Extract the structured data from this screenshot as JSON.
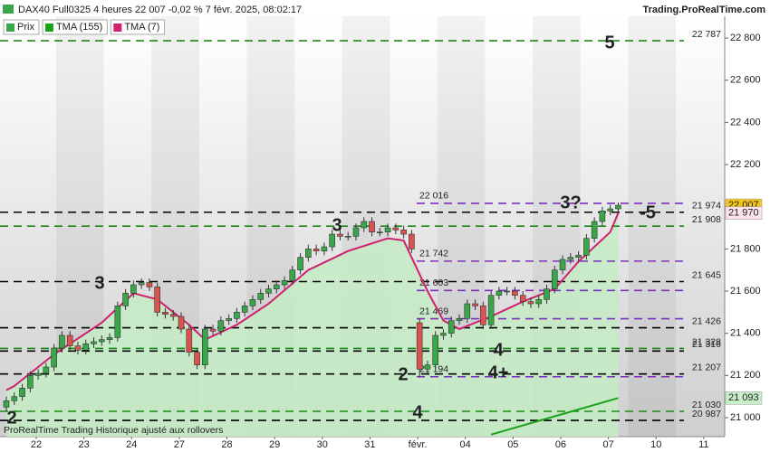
{
  "chart_data": {
    "type": "candlestick",
    "title": "DAX40 Full0325 4 heures 22 007 -0,02 % 7 févr. 2025, 08:02:17",
    "source": "Trading.ProRealTime.com",
    "footer": "ProRealTime Trading Historique ajusté aux rollovers",
    "candles_name": "Prix",
    "up_color": "#3aa64a",
    "down_color": "#d9534f",
    "candles": [
      [
        21050,
        21100,
        21030,
        21080
      ],
      [
        21080,
        21120,
        21060,
        21100
      ],
      [
        21100,
        21160,
        21080,
        21140
      ],
      [
        21140,
        21220,
        21120,
        21200
      ],
      [
        21200,
        21230,
        21180,
        21210
      ],
      [
        21210,
        21260,
        21190,
        21240
      ],
      [
        21240,
        21350,
        21220,
        21330
      ],
      [
        21330,
        21410,
        21310,
        21390
      ],
      [
        21390,
        21410,
        21320,
        21340
      ],
      [
        21340,
        21360,
        21300,
        21320
      ],
      [
        21320,
        21370,
        21300,
        21350
      ],
      [
        21350,
        21380,
        21330,
        21360
      ],
      [
        21360,
        21390,
        21340,
        21370
      ],
      [
        21370,
        21400,
        21350,
        21380
      ],
      [
        21380,
        21550,
        21360,
        21530
      ],
      [
        21530,
        21610,
        21510,
        21590
      ],
      [
        21590,
        21650,
        21570,
        21630
      ],
      [
        21630,
        21660,
        21610,
        21640
      ],
      [
        21640,
        21660,
        21600,
        21620
      ],
      [
        21620,
        21640,
        21480,
        21500
      ],
      [
        21500,
        21520,
        21470,
        21490
      ],
      [
        21490,
        21510,
        21460,
        21480
      ],
      [
        21480,
        21500,
        21400,
        21420
      ],
      [
        21420,
        21440,
        21290,
        21310
      ],
      [
        21310,
        21330,
        21230,
        21250
      ],
      [
        21250,
        21440,
        21230,
        21420
      ],
      [
        21420,
        21440,
        21390,
        21410
      ],
      [
        21410,
        21480,
        21390,
        21460
      ],
      [
        21460,
        21490,
        21440,
        21470
      ],
      [
        21470,
        21520,
        21450,
        21500
      ],
      [
        21500,
        21550,
        21480,
        21530
      ],
      [
        21530,
        21580,
        21510,
        21560
      ],
      [
        21560,
        21610,
        21540,
        21590
      ],
      [
        21590,
        21630,
        21570,
        21610
      ],
      [
        21610,
        21650,
        21590,
        21630
      ],
      [
        21630,
        21670,
        21610,
        21650
      ],
      [
        21650,
        21720,
        21630,
        21700
      ],
      [
        21700,
        21780,
        21680,
        21760
      ],
      [
        21760,
        21820,
        21740,
        21800
      ],
      [
        21800,
        21820,
        21770,
        21790
      ],
      [
        21790,
        21830,
        21770,
        21810
      ],
      [
        21810,
        21890,
        21790,
        21870
      ],
      [
        21870,
        21890,
        21840,
        21860
      ],
      [
        21860,
        21880,
        21840,
        21860
      ],
      [
        21860,
        21920,
        21840,
        21900
      ],
      [
        21900,
        21950,
        21880,
        21930
      ],
      [
        21930,
        21950,
        21860,
        21880
      ],
      [
        21880,
        21900,
        21860,
        21880
      ],
      [
        21880,
        21920,
        21860,
        21900
      ],
      [
        21900,
        21920,
        21870,
        21890
      ],
      [
        21890,
        21910,
        21850,
        21870
      ],
      [
        21870,
        21890,
        21780,
        21800
      ],
      [
        21450,
        21470,
        21190,
        21230
      ],
      [
        21230,
        21270,
        21210,
        21250
      ],
      [
        21250,
        21410,
        21230,
        21390
      ],
      [
        21390,
        21420,
        21370,
        21400
      ],
      [
        21400,
        21480,
        21380,
        21460
      ],
      [
        21460,
        21490,
        21440,
        21470
      ],
      [
        21470,
        21560,
        21450,
        21540
      ],
      [
        21540,
        21560,
        21510,
        21530
      ],
      [
        21530,
        21550,
        21420,
        21440
      ],
      [
        21440,
        21600,
        21420,
        21580
      ],
      [
        21580,
        21620,
        21560,
        21600
      ],
      [
        21600,
        21620,
        21580,
        21600
      ],
      [
        21600,
        21620,
        21560,
        21580
      ],
      [
        21580,
        21600,
        21530,
        21550
      ],
      [
        21550,
        21570,
        21520,
        21540
      ],
      [
        21540,
        21580,
        21520,
        21560
      ],
      [
        21560,
        21630,
        21540,
        21610
      ],
      [
        21610,
        21720,
        21590,
        21700
      ],
      [
        21700,
        21770,
        21680,
        21750
      ],
      [
        21750,
        21780,
        21730,
        21760
      ],
      [
        21760,
        21790,
        21740,
        21770
      ],
      [
        21770,
        21870,
        21750,
        21850
      ],
      [
        21850,
        21950,
        21830,
        21930
      ],
      [
        21930,
        22000,
        21910,
        21980
      ],
      [
        21980,
        22010,
        21960,
        21990
      ],
      [
        21990,
        22020,
        21970,
        22007
      ]
    ],
    "series": [
      {
        "name": "TMA (155)",
        "color": "#1aa31a",
        "x": [
          61,
          77
        ],
        "values": [
          20920,
          21093
        ]
      },
      {
        "name": "TMA (7)",
        "color": "#d0206e",
        "fill": "#c4ecc4",
        "x": [
          0,
          1,
          6,
          12,
          16,
          19,
          23,
          25,
          29,
          33,
          38,
          43,
          48,
          50,
          53,
          55,
          57,
          61,
          65,
          69,
          72,
          76,
          77
        ],
        "values": [
          21130,
          21150,
          21300,
          21450,
          21590,
          21560,
          21440,
          21370,
          21440,
          21540,
          21700,
          21790,
          21850,
          21840,
          21600,
          21460,
          21420,
          21480,
          21550,
          21610,
          21740,
          21880,
          21970
        ]
      }
    ],
    "xlim": [
      -0.8,
      90.4
    ],
    "ylim": [
      20910,
      22903
    ],
    "xticks": [
      {
        "value": 3.76,
        "label": "22"
      },
      {
        "value": 9.76,
        "label": "23"
      },
      {
        "value": 15.76,
        "label": "24"
      },
      {
        "value": 21.76,
        "label": "27"
      },
      {
        "value": 27.76,
        "label": "28"
      },
      {
        "value": 33.76,
        "label": "29"
      },
      {
        "value": 39.76,
        "label": "30"
      },
      {
        "value": 45.76,
        "label": "31"
      },
      {
        "value": 51.76,
        "label": "févr."
      },
      {
        "value": 57.76,
        "label": "04"
      },
      {
        "value": 63.76,
        "label": "05"
      },
      {
        "value": 69.76,
        "label": "06"
      },
      {
        "value": 75.76,
        "label": "07"
      },
      {
        "value": 81.76,
        "label": "10"
      },
      {
        "value": 87.76,
        "label": "11"
      }
    ],
    "yticks": [
      {
        "value": 21000,
        "label": "21 000"
      },
      {
        "value": 21200,
        "label": "21 200"
      },
      {
        "value": 21400,
        "label": "21 400"
      },
      {
        "value": 21600,
        "label": "21 600"
      },
      {
        "value": 21800,
        "label": "21 800"
      },
      {
        "value": 22000,
        "label": "22 000"
      },
      {
        "value": 22200,
        "label": "22 200"
      },
      {
        "value": 22400,
        "label": "22 400"
      },
      {
        "value": 22600,
        "label": "22 600"
      },
      {
        "value": 22800,
        "label": "22 800"
      }
    ],
    "levels": [
      {
        "value": 22787,
        "label": "22 787",
        "color": "#1a8a1a",
        "label_side": "right"
      },
      {
        "value": 22016,
        "label": "22 016",
        "color": "#7b2fbe",
        "label_side": "left"
      },
      {
        "value": 21974,
        "label": "21 974",
        "color": "#000000",
        "label_side": "right"
      },
      {
        "value": 21908,
        "label": "21 908",
        "color": "#1a8a1a",
        "label_side": "right"
      },
      {
        "value": 21742,
        "label": "21 742",
        "color": "#7b2fbe",
        "label_side": "left"
      },
      {
        "value": 21645,
        "label": "21 645",
        "color": "#000000",
        "label_side": "right"
      },
      {
        "value": 21603,
        "label": "21 603",
        "color": "#7b2fbe",
        "label_side": "left"
      },
      {
        "value": 21469,
        "label": "21 469",
        "color": "#7b2fbe",
        "label_side": "left"
      },
      {
        "value": 21426,
        "label": "21 426",
        "color": "#000000",
        "label_side": "right"
      },
      {
        "value": 21328,
        "label": "21 328",
        "color": "#1a8a1a",
        "label_side": "right"
      },
      {
        "value": 21316,
        "label": "21 316",
        "color": "#000000",
        "label_side": "right"
      },
      {
        "value": 21207,
        "label": "21 207",
        "color": "#000000",
        "label_side": "right"
      },
      {
        "value": 21194,
        "label": "21 194",
        "color": "#7b2fbe",
        "label_side": "left"
      },
      {
        "value": 21030,
        "label": "21 030",
        "color": "#1a8a1a",
        "label_side": "right"
      },
      {
        "value": 20987,
        "label": "20 987",
        "color": "#000000",
        "label_side": "right"
      }
    ],
    "annotations": [
      {
        "text": "5",
        "color": "#1a8a1a"
      },
      {
        "text": "3?",
        "color": "#7b2fbe"
      },
      {
        "text": "-5",
        "color": "#000000"
      },
      {
        "text": "3",
        "color": "#1a8a1a"
      },
      {
        "text": "3",
        "color": "#000000"
      },
      {
        "text": "4",
        "color": "#000000"
      },
      {
        "text": "4+",
        "color": "#000000"
      },
      {
        "text": "2",
        "color": "#7b2fbe"
      },
      {
        "text": "4",
        "color": "#1a8a1a"
      },
      {
        "text": "2",
        "color": "#000000"
      }
    ],
    "price_tags": [
      {
        "value": 22007,
        "label": "22 007",
        "bg": "#f5c518",
        "fg": "#000000"
      },
      {
        "value": 21970,
        "label": "21 970",
        "bg": "#fde3ee",
        "fg": "#d0206e"
      },
      {
        "value": 21093,
        "label": "21 093",
        "bg": "#c8f0c8",
        "fg": "#1a8a1a"
      }
    ]
  }
}
